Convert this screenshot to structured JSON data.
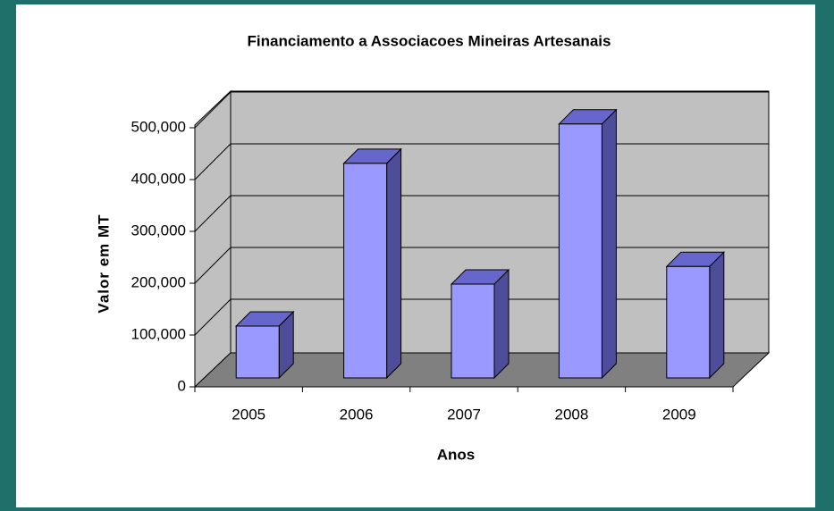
{
  "chart_data": {
    "type": "bar3d",
    "title": "Financiamento a Associacoes Mineiras Artesanais",
    "x_label": "Anos",
    "y_label": "Valor em MT",
    "categories": [
      "2005",
      "2006",
      "2007",
      "2008",
      "2009"
    ],
    "values": [
      100000,
      414000,
      181000,
      490000,
      215000
    ],
    "color": "#9999ff",
    "ylim": [
      0,
      500000
    ],
    "yticks": [
      0,
      {
        "value": 100000,
        "label": "100,000"
      },
      {
        "value": 200000,
        "label": "200,000"
      },
      {
        "value": 300000,
        "label": "300,000"
      },
      {
        "value": 400000,
        "label": "400,000"
      },
      {
        "value": 500000,
        "label": "500,000"
      }
    ],
    "grid": true
  }
}
